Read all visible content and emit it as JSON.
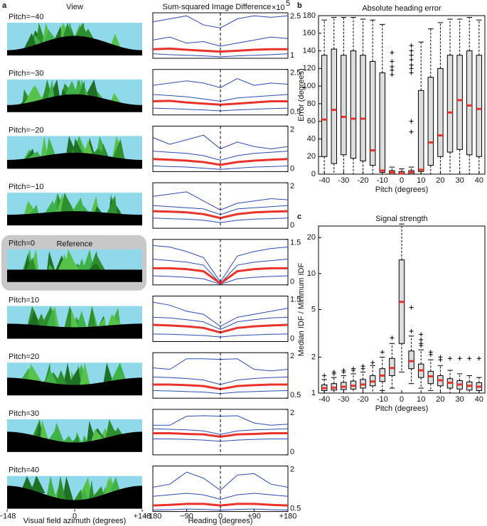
{
  "chart_data": [
    {
      "type": "views",
      "panel": "a",
      "title": "View",
      "rows": [
        {
          "label": "Pitch=−40"
        },
        {
          "label": "Pitch=−30"
        },
        {
          "label": "Pitch=−20"
        },
        {
          "label": "Pitch=−10"
        },
        {
          "label": "Pitch=0",
          "note": "Reference"
        },
        {
          "label": "Pitch=10"
        },
        {
          "label": "Pitch=20"
        },
        {
          "label": "Pitch=30"
        },
        {
          "label": "Pitch=40"
        }
      ],
      "xlabel": "Visual field azimuth (degrees)",
      "xlim": [
        -148,
        148
      ],
      "xticks": [
        {
          "value": -148,
          "label": "−148"
        },
        0,
        {
          "value": 148,
          "label": "+148"
        }
      ]
    },
    {
      "type": "lines",
      "title": "Sum-squared Image Difference",
      "y_scale_label": "×10",
      "y_scale_exponent": "5",
      "xlabel": "Heading (degrees)",
      "xlim": [
        -180,
        180
      ],
      "xticks": [
        {
          "value": -180,
          "label": "−180"
        },
        {
          "value": -90,
          "label": "−90"
        },
        0,
        {
          "value": 90,
          "label": "+90"
        },
        {
          "value": 180,
          "label": "+180"
        }
      ],
      "x": [
        -180,
        -135,
        -90,
        -45,
        0,
        45,
        90,
        135,
        180
      ],
      "route_color": "#2a4bb5",
      "median_color": "#e8322a",
      "panels": [
        {
          "ylim": [
            1,
            2.5
          ],
          "yticks": [
            1,
            2.5
          ],
          "median": [
            1.3,
            1.32,
            1.28,
            1.25,
            1.22,
            1.25,
            1.28,
            1.3,
            1.3
          ],
          "routes": [
            [
              2.2,
              2.3,
              2.4,
              2.1,
              2.0,
              2.3,
              2.4,
              2.35,
              2.4
            ],
            [
              1.6,
              1.7,
              1.5,
              1.55,
              1.4,
              1.5,
              1.6,
              1.7,
              1.65
            ],
            [
              1.15,
              1.12,
              1.1,
              1.08,
              1.05,
              1.08,
              1.1,
              1.12,
              1.15
            ]
          ]
        },
        {
          "ylim": [
            0.5,
            2.5
          ],
          "yticks": [
            0.5,
            2.5
          ],
          "median": [
            1.1,
            1.12,
            1.05,
            1.0,
            0.95,
            1.0,
            1.05,
            1.1,
            1.1
          ],
          "routes": [
            [
              1.8,
              1.9,
              2.0,
              1.9,
              1.7,
              2.1,
              1.8,
              1.9,
              1.85
            ],
            [
              1.4,
              1.35,
              1.3,
              1.2,
              1.1,
              1.25,
              1.3,
              1.35,
              1.4
            ],
            [
              0.8,
              0.78,
              0.75,
              0.72,
              0.68,
              0.72,
              0.75,
              0.78,
              0.8
            ]
          ]
        },
        {
          "ylim": [
            0,
            2
          ],
          "yticks": [
            0,
            2
          ],
          "median": [
            0.55,
            0.52,
            0.48,
            0.42,
            0.3,
            0.42,
            0.48,
            0.52,
            0.55
          ],
          "routes": [
            [
              1.5,
              1.2,
              1.4,
              1.6,
              1.0,
              1.3,
              1.1,
              1.0,
              1.1
            ],
            [
              0.9,
              0.85,
              0.8,
              0.7,
              0.5,
              0.7,
              0.8,
              0.85,
              0.9
            ],
            [
              0.25,
              0.22,
              0.2,
              0.15,
              0.1,
              0.15,
              0.2,
              0.22,
              0.25
            ]
          ]
        },
        {
          "ylim": [
            0,
            2
          ],
          "yticks": [
            0,
            2
          ],
          "median": [
            0.75,
            0.73,
            0.7,
            0.62,
            0.45,
            0.62,
            0.7,
            0.73,
            0.75
          ],
          "routes": [
            [
              1.4,
              1.5,
              1.6,
              1.2,
              0.8,
              1.1,
              1.2,
              1.3,
              1.25
            ],
            [
              1.0,
              0.95,
              0.9,
              0.85,
              0.6,
              0.85,
              0.9,
              0.95,
              1.0
            ],
            [
              0.45,
              0.42,
              0.4,
              0.35,
              0.25,
              0.35,
              0.4,
              0.42,
              0.45
            ]
          ]
        },
        {
          "ylim": [
            0,
            1.5
          ],
          "yticks": [
            0,
            1.5
          ],
          "median": [
            0.55,
            0.55,
            0.52,
            0.45,
            0.05,
            0.45,
            0.52,
            0.55,
            0.55
          ],
          "routes": [
            [
              1.3,
              1.25,
              1.1,
              0.9,
              0.1,
              0.95,
              1.1,
              1.2,
              1.25
            ],
            [
              0.85,
              0.8,
              0.75,
              0.65,
              0.05,
              0.65,
              0.75,
              0.8,
              0.85
            ],
            [
              0.3,
              0.28,
              0.25,
              0.2,
              0.02,
              0.2,
              0.25,
              0.28,
              0.3
            ]
          ]
        },
        {
          "ylim": [
            0,
            1.5
          ],
          "yticks": [
            0,
            1.5
          ],
          "median": [
            0.55,
            0.53,
            0.5,
            0.45,
            0.3,
            0.45,
            0.5,
            0.53,
            0.55
          ],
          "routes": [
            [
              1.3,
              1.2,
              1.0,
              0.9,
              0.5,
              0.8,
              0.9,
              1.0,
              1.1
            ],
            [
              0.8,
              0.78,
              0.72,
              0.65,
              0.4,
              0.65,
              0.72,
              0.78,
              0.8
            ],
            [
              0.25,
              0.24,
              0.22,
              0.2,
              0.15,
              0.2,
              0.22,
              0.24,
              0.25
            ]
          ]
        },
        {
          "ylim": [
            0.5,
            2
          ],
          "yticks": [
            0.5,
            2
          ],
          "median": [
            0.95,
            0.95,
            0.93,
            0.9,
            0.8,
            0.9,
            0.93,
            0.95,
            0.95
          ],
          "routes": [
            [
              1.5,
              1.45,
              1.8,
              1.8,
              1.78,
              1.8,
              1.45,
              1.4,
              1.45
            ],
            [
              1.2,
              1.18,
              1.15,
              1.1,
              0.95,
              1.1,
              1.15,
              1.18,
              1.2
            ],
            [
              0.75,
              0.74,
              0.72,
              0.7,
              0.65,
              0.7,
              0.72,
              0.74,
              0.75
            ]
          ]
        },
        {
          "ylim": [
            0,
            2
          ],
          "yticks": [
            0,
            2
          ],
          "median": [
            0.95,
            0.95,
            0.92,
            0.9,
            0.8,
            0.9,
            0.92,
            0.95,
            0.95
          ],
          "routes": [
            [
              1.3,
              1.3,
              1.7,
              1.72,
              1.7,
              1.72,
              1.4,
              1.3,
              1.35
            ],
            [
              1.15,
              1.12,
              1.1,
              1.05,
              0.9,
              1.05,
              1.1,
              1.12,
              1.15
            ],
            [
              0.7,
              0.7,
              0.68,
              0.65,
              0.6,
              0.65,
              0.68,
              0.7,
              0.7
            ]
          ]
        },
        {
          "ylim": [
            0.5,
            2
          ],
          "yticks": [
            0.5,
            2
          ],
          "median": [
            0.7,
            0.72,
            0.75,
            0.75,
            0.7,
            0.75,
            0.75,
            0.72,
            0.7
          ],
          "routes": [
            [
              1.3,
              1.4,
              1.8,
              1.6,
              1.2,
              1.7,
              1.75,
              1.4,
              1.3
            ],
            [
              1.0,
              1.05,
              1.1,
              1.05,
              0.9,
              1.05,
              1.1,
              1.05,
              1.0
            ],
            [
              0.55,
              0.56,
              0.58,
              0.57,
              0.55,
              0.57,
              0.58,
              0.56,
              0.55
            ]
          ]
        }
      ]
    },
    {
      "type": "box",
      "panel": "b",
      "title": "Absolute heading error",
      "xlabel": "Pitch (degrees)",
      "ylabel": "Error (degrees)",
      "log": false,
      "xlim": [
        -43,
        43
      ],
      "xticks": [
        -40,
        -30,
        -20,
        -10,
        0,
        10,
        20,
        30,
        40
      ],
      "ylim": [
        0,
        180
      ],
      "yticks": [
        0,
        20,
        40,
        60,
        80,
        100,
        120,
        140,
        160,
        180
      ],
      "box_color": "#dddddd",
      "median_color": "#e8322a",
      "x": [
        -40,
        -35,
        -30,
        -25,
        -20,
        -15,
        -10,
        -5,
        0,
        5,
        10,
        15,
        20,
        25,
        30,
        35,
        40
      ],
      "whislo": [
        0,
        0,
        0,
        0,
        0,
        0,
        0,
        0,
        0,
        0,
        0,
        0,
        0,
        0,
        0,
        0,
        0
      ],
      "q1": [
        20,
        12,
        22,
        18,
        15,
        10,
        2,
        0,
        0,
        0,
        3,
        10,
        20,
        25,
        28,
        22,
        20
      ],
      "med": [
        62,
        73,
        65,
        63,
        63,
        27,
        4,
        2,
        1,
        2,
        5,
        36,
        44,
        70,
        84,
        78,
        74
      ],
      "q3": [
        135,
        142,
        135,
        140,
        135,
        128,
        115,
        4,
        3,
        4,
        95,
        110,
        120,
        135,
        135,
        140,
        135
      ],
      "whishi": [
        175,
        178,
        178,
        178,
        176,
        175,
        170,
        8,
        6,
        8,
        150,
        165,
        172,
        176,
        176,
        178,
        175
      ],
      "fliers": [
        [],
        [],
        [],
        [],
        [],
        [],
        [],
        [
          138,
          128,
          122,
          118,
          113
        ],
        [],
        [
          146,
          140,
          135,
          130,
          124,
          120,
          115,
          60,
          48
        ],
        [],
        [],
        [],
        [],
        [],
        [],
        []
      ]
    },
    {
      "type": "box",
      "panel": "c",
      "title": "Signal strength",
      "xlabel": "Pitch (degrees)",
      "ylabel": "Median IDF / Minimum IDF",
      "log": true,
      "xlim": [
        -43,
        43
      ],
      "xticks": [
        -40,
        -30,
        -20,
        -10,
        0,
        10,
        20,
        30,
        40
      ],
      "ylim": [
        1,
        25
      ],
      "yticks": [
        1,
        2,
        5,
        10,
        20
      ],
      "box_color": "#dddddd",
      "median_color": "#e8322a",
      "x": [
        -40,
        -35,
        -30,
        -25,
        -20,
        -15,
        -10,
        -5,
        0,
        5,
        10,
        15,
        20,
        25,
        30,
        35,
        40
      ],
      "whislo": [
        1.0,
        1.0,
        1.0,
        1.0,
        1.0,
        1.0,
        1.05,
        1.1,
        1.5,
        1.2,
        1.1,
        1.05,
        1.0,
        1.0,
        1.0,
        1.0,
        1.0
      ],
      "q1": [
        1.05,
        1.06,
        1.07,
        1.08,
        1.1,
        1.15,
        1.25,
        1.4,
        2.6,
        1.6,
        1.35,
        1.2,
        1.15,
        1.1,
        1.08,
        1.06,
        1.05
      ],
      "med": [
        1.1,
        1.11,
        1.13,
        1.15,
        1.18,
        1.25,
        1.4,
        1.62,
        5.8,
        1.85,
        1.55,
        1.38,
        1.28,
        1.22,
        1.18,
        1.15,
        1.13
      ],
      "q3": [
        1.17,
        1.2,
        1.23,
        1.26,
        1.3,
        1.4,
        1.6,
        1.95,
        13,
        2.25,
        1.75,
        1.52,
        1.4,
        1.32,
        1.27,
        1.24,
        1.22
      ],
      "whishi": [
        1.3,
        1.35,
        1.4,
        1.45,
        1.5,
        1.7,
        2.0,
        2.6,
        26,
        3.0,
        2.3,
        1.9,
        1.7,
        1.55,
        1.45,
        1.4,
        1.35
      ],
      "fliers": [
        [
          1.4
        ],
        [
          1.45,
          1.5
        ],
        [
          1.5,
          1.55
        ],
        [
          1.55,
          1.6
        ],
        [
          1.6,
          1.68
        ],
        [
          1.8
        ],
        [
          2.2
        ],
        [
          2.9
        ],
        [],
        [
          3.3,
          5.2
        ],
        [
          2.5,
          2.6,
          2.8,
          3.1
        ],
        [
          2.1,
          2.2
        ],
        [
          1.9,
          2.0
        ],
        [
          1.95
        ],
        [
          1.95
        ],
        [
          1.95
        ],
        [
          1.95
        ]
      ]
    }
  ]
}
